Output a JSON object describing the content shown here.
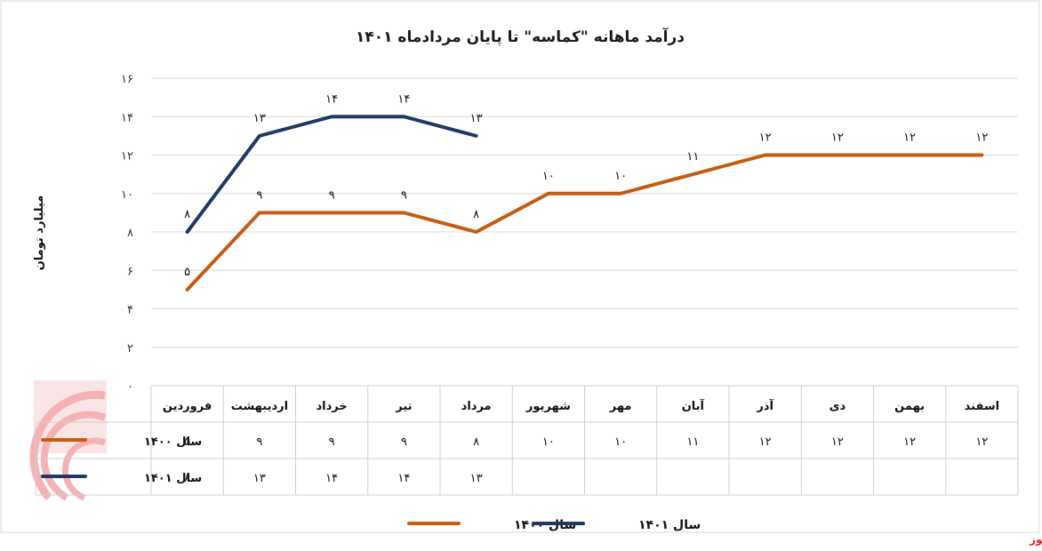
{
  "source": "بورس نیوز",
  "chart_data": {
    "type": "line",
    "title": "درآمد ماهانه \"کماسه\" تا پایان مردادماه ۱۴۰۱",
    "ylabel": "میلیارد تومان",
    "ylim": [
      0,
      16
    ],
    "yticks": [
      "۰",
      "۲",
      "۴",
      "۶",
      "۸",
      "۱۰",
      "۱۲",
      "۱۴",
      "۱۶"
    ],
    "ytick_values": [
      0,
      2,
      4,
      6,
      8,
      10,
      12,
      14,
      16
    ],
    "grid": true,
    "legend_position": "bottom",
    "categories": [
      "فروردین",
      "اردیبهشت",
      "خرداد",
      "تیر",
      "مرداد",
      "شهریور",
      "مهر",
      "آبان",
      "آذر",
      "دی",
      "بهمن",
      "اسفند"
    ],
    "series": [
      {
        "name": "سال ۱۴۰۰",
        "color": "#c55a11",
        "values": [
          5,
          9,
          9,
          9,
          8,
          10,
          10,
          11,
          12,
          12,
          12,
          12
        ],
        "labels": [
          "۵",
          "۹",
          "۹",
          "۹",
          "۸",
          "۱۰",
          "۱۰",
          "۱۱",
          "۱۲",
          "۱۲",
          "۱۲",
          "۱۲"
        ]
      },
      {
        "name": "سال ۱۴۰۱",
        "color": "#1f3864",
        "values": [
          8,
          13,
          14,
          14,
          13,
          null,
          null,
          null,
          null,
          null,
          null,
          null
        ],
        "labels": [
          "۸",
          "۱۳",
          "۱۴",
          "۱۴",
          "۱۳",
          "",
          "",
          "",
          "",
          "",
          "",
          ""
        ]
      }
    ]
  }
}
